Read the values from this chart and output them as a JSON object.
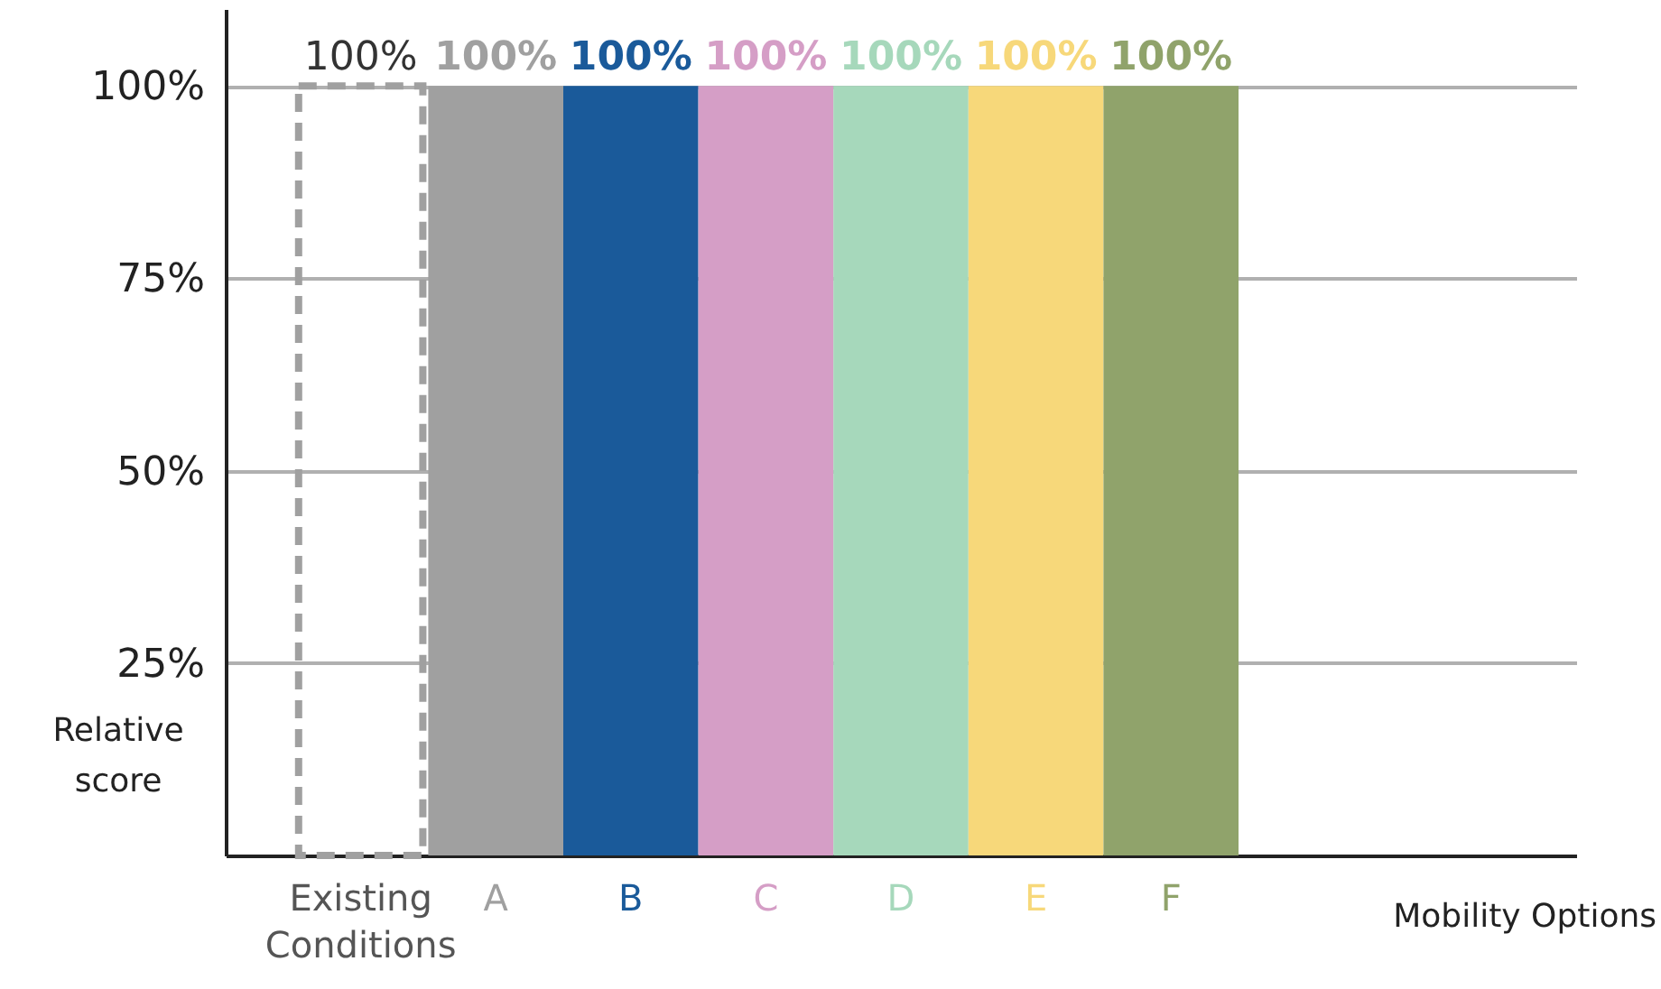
{
  "chart_data": {
    "type": "bar",
    "categories": [
      "Existing Conditions",
      "A",
      "B",
      "C",
      "D",
      "E",
      "F"
    ],
    "series": [
      {
        "color": "#a0a0a0",
        "line_style": "dashed",
        "values": [
          100,
          null,
          null,
          null,
          null,
          null,
          null
        ]
      },
      {
        "colors": [
          "#a0a0a0",
          "#a0a0a0",
          "#1a5a9a",
          "#d59ec6",
          "#a6d8bb",
          "#f7d87a",
          "#90a36b"
        ],
        "values": [
          null,
          100,
          100,
          100,
          100,
          100,
          100
        ]
      }
    ],
    "value_labels": [
      "100%",
      "100%",
      "100%",
      "100%",
      "100%",
      "100%",
      "100%"
    ],
    "xlabel": "Mobility Options",
    "ylabel": "Relative score",
    "ylim": [
      0,
      110
    ],
    "yticks": [
      {
        "value": 25,
        "label": "25%"
      },
      {
        "value": 50,
        "label": "50%"
      },
      {
        "value": 75,
        "label": "75%"
      },
      {
        "value": 100,
        "label": "100%"
      }
    ],
    "grid": "y"
  }
}
